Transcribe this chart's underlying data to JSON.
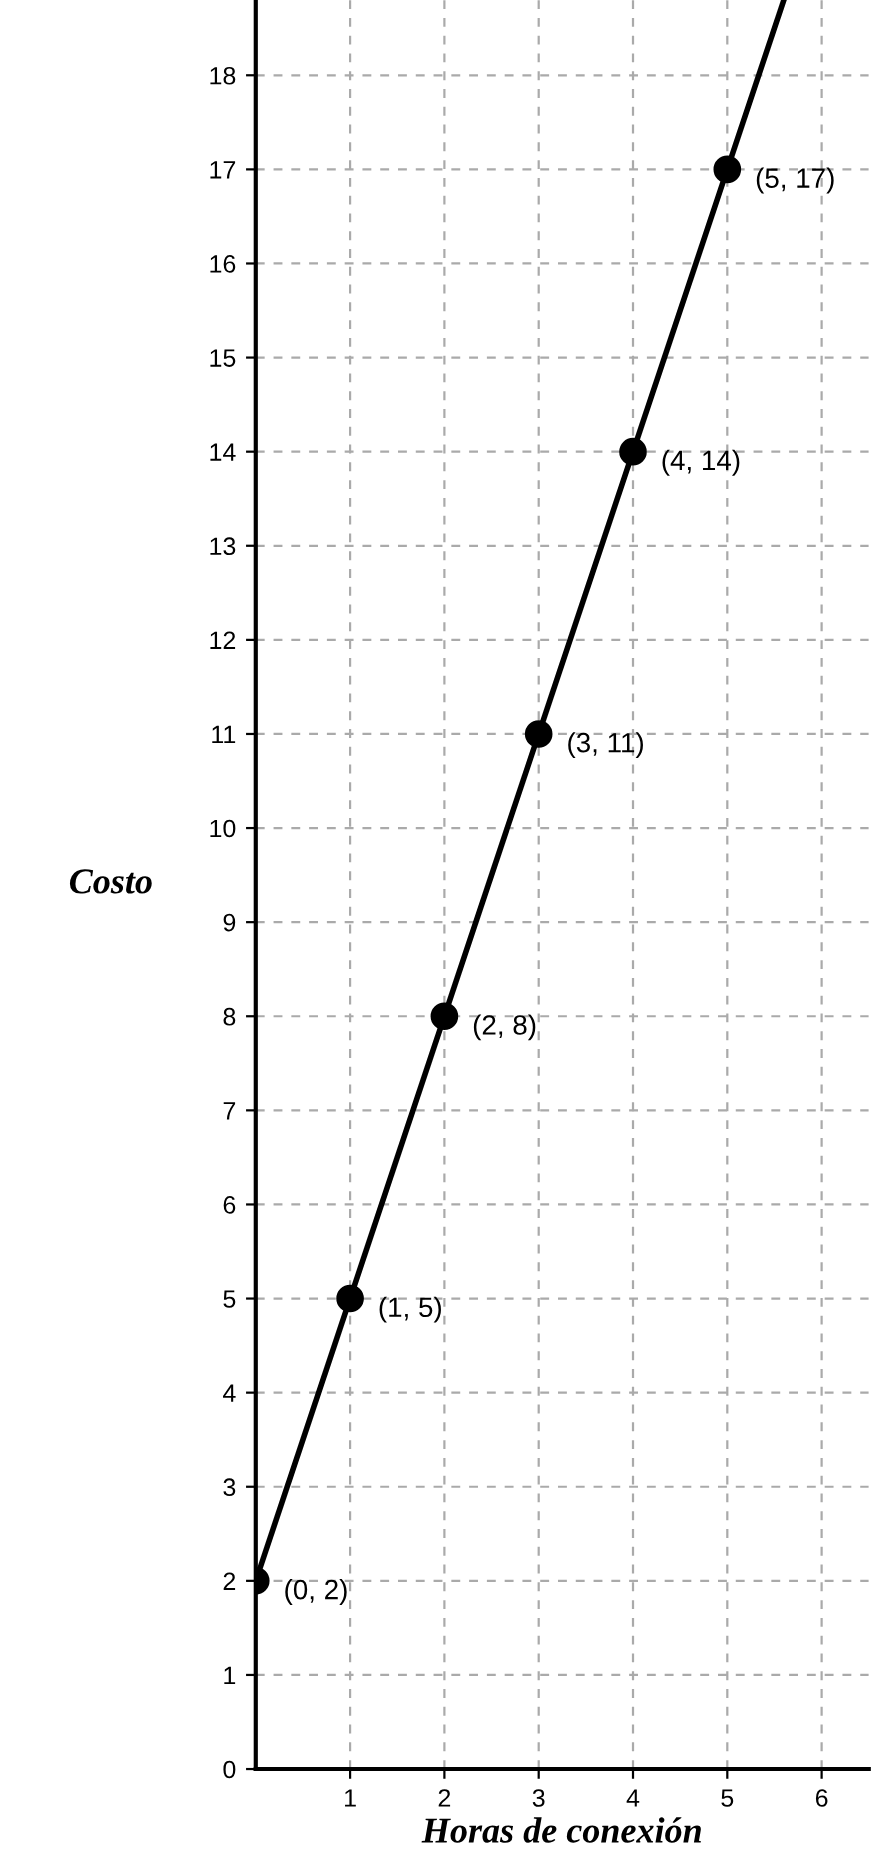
{
  "chart_data": {
    "type": "line",
    "xlabel": "Horas de conexión",
    "ylabel": "Costo",
    "series": [
      {
        "color": "#000000",
        "x": [
          0,
          5.6
        ],
        "values": [
          2,
          18.8
        ],
        "marker": "none"
      },
      {
        "type": "scatter",
        "color": "#000000",
        "x": [
          0,
          1,
          2,
          3,
          4,
          5
        ],
        "values": [
          2,
          5,
          8,
          11,
          14,
          17
        ],
        "marker": "circle"
      }
    ],
    "annotations": [
      {
        "text": "(0, 2)",
        "x": 0,
        "y": 2
      },
      {
        "text": "(1, 5)",
        "x": 1,
        "y": 5
      },
      {
        "text": "(2, 8)",
        "x": 2,
        "y": 8
      },
      {
        "text": "(3, 11)",
        "x": 3,
        "y": 11
      },
      {
        "text": "(4, 14)",
        "x": 4,
        "y": 14
      },
      {
        "text": "(5, 17)",
        "x": 5,
        "y": 17
      }
    ],
    "xlim": [
      0,
      6.5
    ],
    "ylim": [
      0,
      18.8
    ],
    "xticks": [
      1,
      2,
      3,
      4,
      5,
      6
    ],
    "yticks": [
      0,
      1,
      2,
      3,
      4,
      5,
      6,
      7,
      8,
      9,
      10,
      11,
      12,
      13,
      14,
      15,
      16,
      17,
      18
    ],
    "grid": true,
    "line_style": "solid"
  }
}
